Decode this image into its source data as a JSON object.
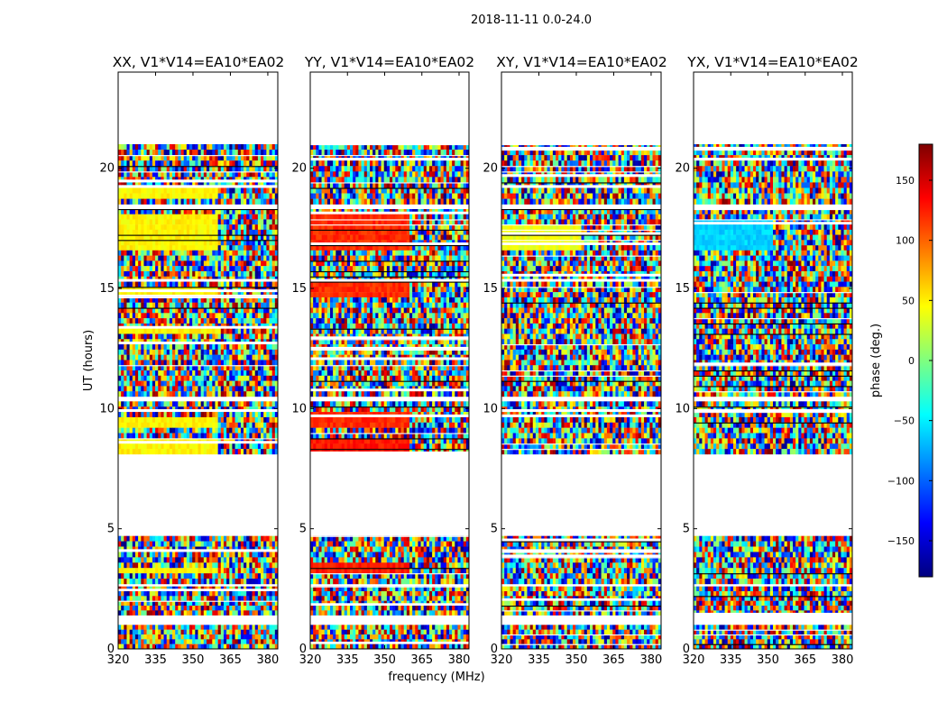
{
  "chart_data": {
    "type": "heatmap",
    "suptitle": "2018-11-11 0.0-24.0",
    "xlabel": "frequency (MHz)",
    "ylabel": "UT (hours)",
    "xlim": [
      320,
      384
    ],
    "ylim": [
      0,
      24
    ],
    "xticks": [
      320,
      335,
      350,
      365,
      380
    ],
    "yticks": [
      0,
      5,
      10,
      15,
      20
    ],
    "data_time_ranges_hours": [
      [
        0.0,
        1.0
      ],
      [
        1.4,
        2.6
      ],
      [
        2.7,
        4.7
      ],
      [
        8.1,
        10.3
      ],
      [
        10.5,
        16.8
      ],
      [
        16.8,
        18.3
      ],
      [
        18.5,
        21.0
      ]
    ],
    "panels": [
      {
        "title": "XX, V1*V14=EA10*EA02",
        "dominant_phase_deg": 45,
        "coherent_bands": [
          {
            "t": [
              16.5,
              18.0
            ],
            "f_end": 360,
            "phase_deg": 48
          },
          {
            "t": [
              18.7,
              19.2
            ],
            "f_end": 360,
            "phase_deg": 48
          },
          {
            "t": [
              14.7,
              15.0
            ],
            "f_end": 360,
            "phase_deg": 48
          },
          {
            "t": [
              13.1,
              13.4
            ],
            "f_end": 360,
            "phase_deg": 48
          },
          {
            "t": [
              9.3,
              9.7
            ],
            "f_end": 360,
            "phase_deg": 48
          },
          {
            "t": [
              8.2,
              8.8
            ],
            "f_end": 360,
            "phase_deg": 48
          },
          {
            "t": [
              3.1,
              3.4
            ],
            "f_end": 360,
            "phase_deg": 48
          }
        ]
      },
      {
        "title": "YY, V1*V14=EA10*EA02",
        "dominant_phase_deg": 120,
        "coherent_bands": [
          {
            "t": [
              16.5,
              18.0
            ],
            "f_end": 360,
            "phase_deg": 120
          },
          {
            "t": [
              14.7,
              15.2
            ],
            "f_end": 360,
            "phase_deg": 120
          },
          {
            "t": [
              9.3,
              9.8
            ],
            "f_end": 360,
            "phase_deg": 120
          },
          {
            "t": [
              8.2,
              8.8
            ],
            "f_end": 360,
            "phase_deg": 128
          },
          {
            "t": [
              3.1,
              3.5
            ],
            "f_end": 360,
            "phase_deg": 125
          }
        ]
      },
      {
        "title": "XY, V1*V14=EA10*EA02",
        "dominant_phase_deg": 40,
        "coherent_bands": [
          {
            "t": [
              16.6,
              17.6
            ],
            "f_end": 352,
            "phase_deg": 40
          }
        ]
      },
      {
        "title": "YX, V1*V14=EA10*EA02",
        "dominant_phase_deg": -60,
        "coherent_bands": [
          {
            "t": [
              16.6,
              17.8
            ],
            "f_end": 352,
            "phase_deg": -60
          }
        ]
      }
    ],
    "colorbar": {
      "label": "phase (deg.)",
      "range": [
        -180,
        180
      ],
      "ticks": [
        -150,
        -100,
        -50,
        0,
        50,
        100,
        150
      ],
      "tick_labels": [
        "−150",
        "−100",
        "−50",
        "0",
        "50",
        "100",
        "150"
      ],
      "colormap": "jet",
      "stops": [
        "#00007f",
        "#0000ff",
        "#007fff",
        "#00ffff",
        "#7fff7f",
        "#ffff00",
        "#ff7f00",
        "#ff0000",
        "#7f0000"
      ]
    }
  }
}
